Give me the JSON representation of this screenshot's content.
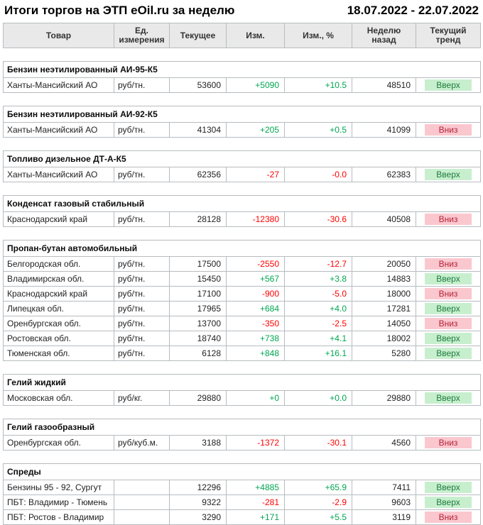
{
  "header": {
    "title": "Итоги торгов на ЭТП eOil.ru за неделю",
    "date_range": "18.07.2022 - 22.07.2022"
  },
  "table": {
    "columns": [
      "Товар",
      "Ед.\nизмерения",
      "Текущее",
      "Изм.",
      "Изм., %",
      "Неделю\nназад",
      "Текущий\nтренд"
    ],
    "groups": [
      {
        "name": "Бензин неэтилированный АИ-95-К5",
        "rows": [
          {
            "product": "Ханты-Мансийский АО",
            "unit": "руб/тн.",
            "current": "53600",
            "change": "+5090",
            "change_pct": "+10.5",
            "week_ago": "48510",
            "trend": "Вверх",
            "trend_dir": "up"
          }
        ]
      },
      {
        "name": "Бензин неэтилированный АИ-92-К5",
        "rows": [
          {
            "product": "Ханты-Мансийский АО",
            "unit": "руб/тн.",
            "current": "41304",
            "change": "+205",
            "change_pct": "+0.5",
            "week_ago": "41099",
            "trend": "Вниз",
            "trend_dir": "down"
          }
        ]
      },
      {
        "name": "Топливо дизельное ДТ-А-К5",
        "rows": [
          {
            "product": "Ханты-Мансийский АО",
            "unit": "руб/тн.",
            "current": "62356",
            "change": "-27",
            "change_pct": "-0.0",
            "week_ago": "62383",
            "trend": "Вверх",
            "trend_dir": "up"
          }
        ]
      },
      {
        "name": "Конденсат газовый стабильный",
        "rows": [
          {
            "product": "Краснодарский край",
            "unit": "руб/тн.",
            "current": "28128",
            "change": "-12380",
            "change_pct": "-30.6",
            "week_ago": "40508",
            "trend": "Вниз",
            "trend_dir": "down"
          }
        ]
      },
      {
        "name": "Пропан-бутан автомобильный",
        "rows": [
          {
            "product": "Белгородская обл.",
            "unit": "руб/тн.",
            "current": "17500",
            "change": "-2550",
            "change_pct": "-12.7",
            "week_ago": "20050",
            "trend": "Вниз",
            "trend_dir": "down"
          },
          {
            "product": "Владимирская обл.",
            "unit": "руб/тн.",
            "current": "15450",
            "change": "+567",
            "change_pct": "+3.8",
            "week_ago": "14883",
            "trend": "Вверх",
            "trend_dir": "up"
          },
          {
            "product": "Краснодарский край",
            "unit": "руб/тн.",
            "current": "17100",
            "change": "-900",
            "change_pct": "-5.0",
            "week_ago": "18000",
            "trend": "Вниз",
            "trend_dir": "down"
          },
          {
            "product": "Липецкая обл.",
            "unit": "руб/тн.",
            "current": "17965",
            "change": "+684",
            "change_pct": "+4.0",
            "week_ago": "17281",
            "trend": "Вверх",
            "trend_dir": "up"
          },
          {
            "product": "Оренбургская обл.",
            "unit": "руб/тн.",
            "current": "13700",
            "change": "-350",
            "change_pct": "-2.5",
            "week_ago": "14050",
            "trend": "Вниз",
            "trend_dir": "down"
          },
          {
            "product": "Ростовская обл.",
            "unit": "руб/тн.",
            "current": "18740",
            "change": "+738",
            "change_pct": "+4.1",
            "week_ago": "18002",
            "trend": "Вверх",
            "trend_dir": "up"
          },
          {
            "product": "Тюменская обл.",
            "unit": "руб/тн.",
            "current": "6128",
            "change": "+848",
            "change_pct": "+16.1",
            "week_ago": "5280",
            "trend": "Вверх",
            "trend_dir": "up"
          }
        ]
      },
      {
        "name": "Гелий жидкий",
        "rows": [
          {
            "product": "Московская обл.",
            "unit": "руб/кг.",
            "current": "29880",
            "change": "+0",
            "change_pct": "+0.0",
            "week_ago": "29880",
            "trend": "Вверх",
            "trend_dir": "up"
          }
        ]
      },
      {
        "name": "Гелий газообразный",
        "rows": [
          {
            "product": "Оренбургская обл.",
            "unit": "руб/куб.м.",
            "current": "3188",
            "change": "-1372",
            "change_pct": "-30.1",
            "week_ago": "4560",
            "trend": "Вниз",
            "trend_dir": "down"
          }
        ]
      },
      {
        "name": "Спреды",
        "rows": [
          {
            "product": "Бензины 95 - 92, Сургут",
            "unit": "",
            "current": "12296",
            "change": "+4885",
            "change_pct": "+65.9",
            "week_ago": "7411",
            "trend": "Вверх",
            "trend_dir": "up"
          },
          {
            "product": "ПБТ: Владимир - Тюмень",
            "unit": "",
            "current": "9322",
            "change": "-281",
            "change_pct": "-2.9",
            "week_ago": "9603",
            "trend": "Вверх",
            "trend_dir": "up"
          },
          {
            "product": "ПБТ: Ростов - Владимир",
            "unit": "",
            "current": "3290",
            "change": "+171",
            "change_pct": "+5.5",
            "week_ago": "3119",
            "trend": "Вниз",
            "trend_dir": "down"
          }
        ]
      }
    ]
  },
  "colors": {
    "positive": "#00A651",
    "negative": "#FF0000",
    "trend_up_bg": "#C7EFCE",
    "trend_up_text": "#1E7B3C",
    "trend_down_bg": "#FBC7CE",
    "trend_down_text": "#B4223A",
    "header_bg": "#E9E9E9",
    "border": "#B7BCC0"
  }
}
